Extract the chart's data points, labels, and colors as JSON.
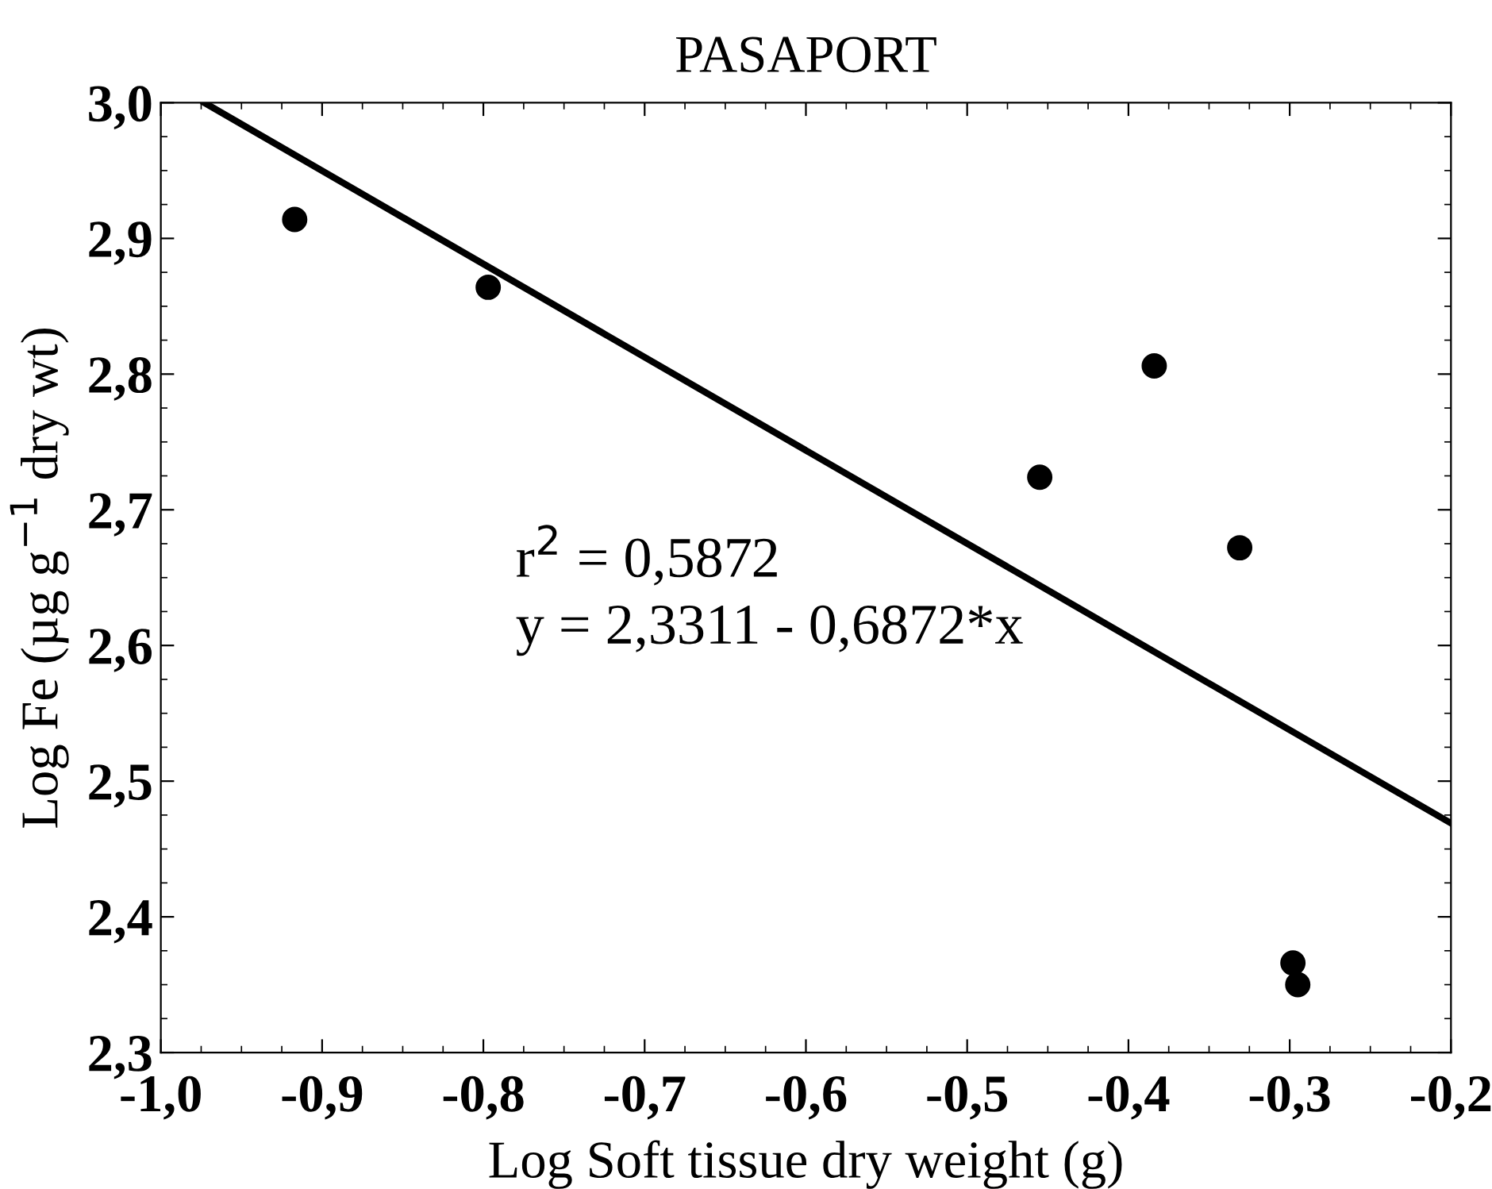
{
  "chart_data": {
    "type": "scatter",
    "title": "PASAPORT",
    "xlabel": "Log Soft tissue dry weight (g)",
    "ylabel": "Log Fe (µg g$^{−1}$ dry wt)",
    "x": [
      -0.917,
      -0.797,
      -0.455,
      -0.384,
      -0.331,
      -0.298,
      -0.295
    ],
    "series": [
      {
        "color": "#000000",
        "marker": "circle",
        "values": [
          2.914,
          2.864,
          2.724,
          2.806,
          2.672,
          2.366,
          2.35
        ]
      },
      {
        "type": "line",
        "color": "#000000",
        "line_style": "solid",
        "x": [
          -0.973,
          -0.2
        ],
        "values": [
          3.0,
          2.469
        ]
      }
    ],
    "annotations": [
      "r$^{2}$ = 0,5872",
      "y = 2,3311 - 0,6872*x"
    ],
    "xlim": [
      -1.0,
      -0.2
    ],
    "ylim": [
      2.3,
      3.0
    ],
    "xticks": [
      {
        "value": -1.0,
        "label": "-1,0"
      },
      {
        "value": -0.9,
        "label": "-0,9"
      },
      {
        "value": -0.8,
        "label": "-0,8"
      },
      {
        "value": -0.7,
        "label": "-0,7"
      },
      {
        "value": -0.6,
        "label": "-0,6"
      },
      {
        "value": -0.5,
        "label": "-0,5"
      },
      {
        "value": -0.4,
        "label": "-0,4"
      },
      {
        "value": -0.3,
        "label": "-0,3"
      },
      {
        "value": -0.2,
        "label": "-0,2"
      }
    ],
    "yticks": [
      {
        "value": 2.3,
        "label": "2,3"
      },
      {
        "value": 2.4,
        "label": "2,4"
      },
      {
        "value": 2.5,
        "label": "2,5"
      },
      {
        "value": 2.6,
        "label": "2,6"
      },
      {
        "value": 2.7,
        "label": "2,7"
      },
      {
        "value": 2.8,
        "label": "2,8"
      },
      {
        "value": 2.9,
        "label": "2,9"
      },
      {
        "value": 3.0,
        "label": "3,0"
      }
    ],
    "grid": false,
    "legend": false
  }
}
